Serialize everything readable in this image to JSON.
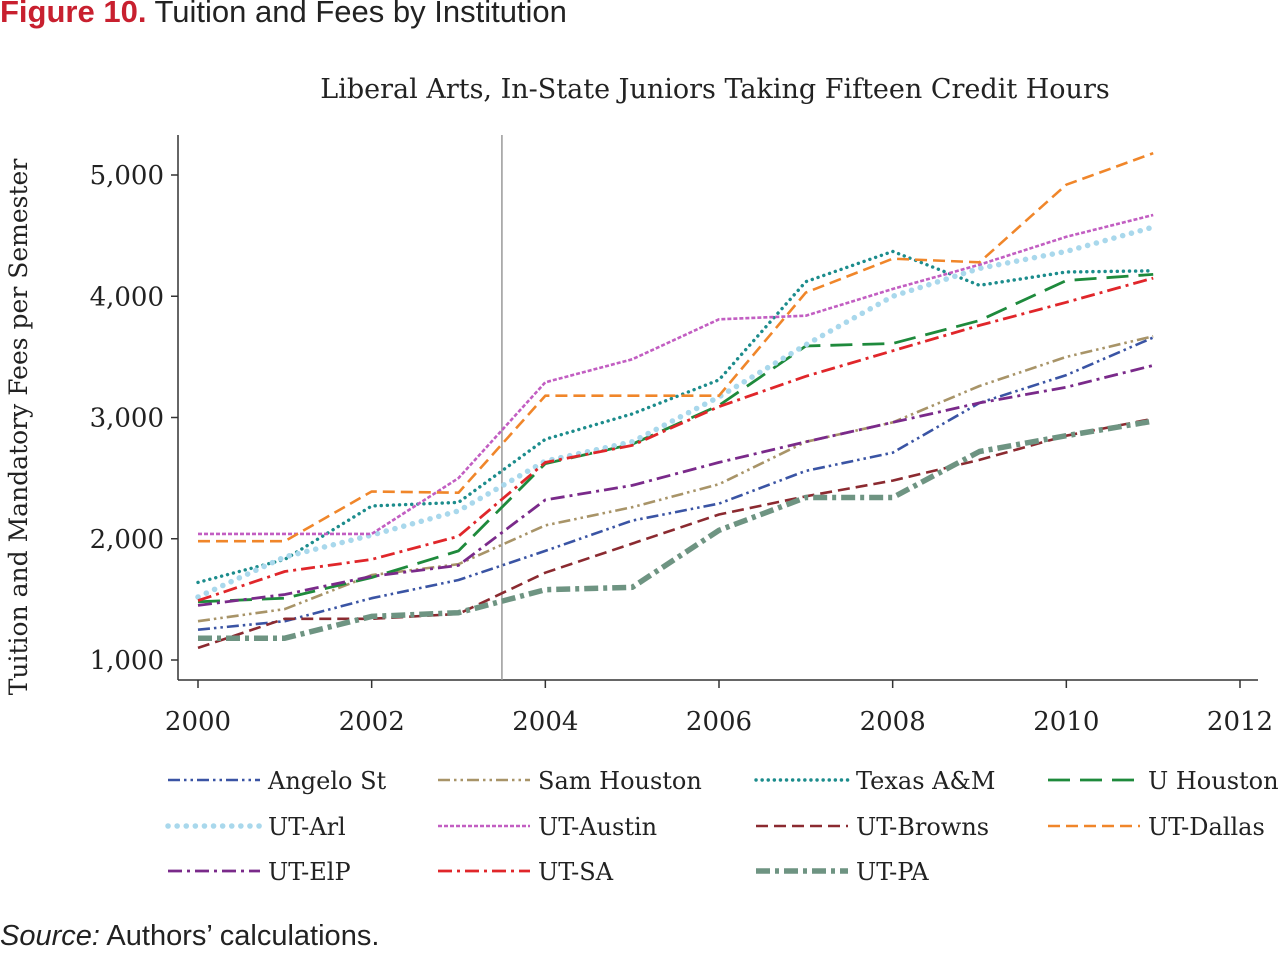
{
  "figure": {
    "number_label": "Figure 10.",
    "title": "Tuition and Fees by Institution"
  },
  "source": {
    "label": "Source:",
    "text": "Authors’ calculations."
  },
  "chart_data": {
    "type": "line",
    "title": "Liberal Arts, In-State Juniors Taking Fifteen Credit Hours",
    "xlabel": "",
    "ylabel": "Tuition and Mandatory Fees per Semester",
    "xlim": [
      2000,
      2012
    ],
    "ylim": [
      1000,
      5250
    ],
    "x_ticks": [
      2000,
      2002,
      2004,
      2006,
      2008,
      2010,
      2012
    ],
    "x_tick_labels": [
      "2000",
      "2002",
      "2004",
      "2006",
      "2008",
      "2010",
      "2012"
    ],
    "y_ticks": [
      1000,
      2000,
      3000,
      4000,
      5000
    ],
    "y_tick_labels": [
      "1,000",
      "2,000",
      "3,000",
      "4,000",
      "5,000"
    ],
    "reference_line_x": 2003.5,
    "grid": false,
    "legend_position": "bottom",
    "x": [
      2000,
      2001,
      2002,
      2003,
      2004,
      2005,
      2006,
      2007,
      2008,
      2009,
      2010,
      2011
    ],
    "series": [
      {
        "name": "Angelo St",
        "color": "#3a54a4",
        "dash": "dashdotdot",
        "values": [
          1250,
          1320,
          1510,
          1660,
          1900,
          2150,
          2290,
          2560,
          2710,
          3120,
          3350,
          3660
        ]
      },
      {
        "name": "Sam Houston",
        "color": "#a89468",
        "dash": "dashdotdot",
        "values": [
          1320,
          1420,
          1700,
          1790,
          2110,
          2260,
          2450,
          2800,
          2960,
          3260,
          3500,
          3670
        ]
      },
      {
        "name": "Texas A&M",
        "color": "#1c8c8c",
        "dash": "dot",
        "values": [
          1640,
          1830,
          2270,
          2300,
          2820,
          3030,
          3310,
          4120,
          4370,
          4090,
          4200,
          4210
        ]
      },
      {
        "name": "U Houston",
        "color": "#1e8a3c",
        "dash": "longdash",
        "values": [
          1480,
          1510,
          1680,
          1900,
          2620,
          2780,
          3100,
          3590,
          3610,
          3800,
          4130,
          4180
        ]
      },
      {
        "name": "UT-Arl",
        "color": "#a9d8ec",
        "dash": "dotthick",
        "values": [
          1520,
          1850,
          2030,
          2230,
          2640,
          2800,
          3170,
          3600,
          4000,
          4230,
          4370,
          4570
        ]
      },
      {
        "name": "UT-Austin",
        "color": "#c25ec2",
        "dash": "shortdash",
        "values": [
          2040,
          2040,
          2040,
          2500,
          3290,
          3480,
          3810,
          3840,
          4060,
          4260,
          4490,
          4670
        ]
      },
      {
        "name": "UT-Browns",
        "color": "#8b2a30",
        "dash": "dash",
        "values": [
          1100,
          1340,
          1340,
          1380,
          1720,
          1960,
          2200,
          2350,
          2480,
          2650,
          2850,
          2990
        ]
      },
      {
        "name": "UT-Dallas",
        "color": "#f0862a",
        "dash": "dash",
        "values": [
          1980,
          1980,
          2390,
          2380,
          3180,
          3180,
          3180,
          4030,
          4310,
          4280,
          4920,
          5180
        ]
      },
      {
        "name": "UT-ElP",
        "color": "#7a2a8a",
        "dash": "dashdot",
        "values": [
          1450,
          1540,
          1690,
          1780,
          2320,
          2440,
          2630,
          2800,
          2960,
          3120,
          3250,
          3430
        ]
      },
      {
        "name": "UT-SA",
        "color": "#e0262a",
        "dash": "dashdot",
        "values": [
          1490,
          1730,
          1830,
          2020,
          2630,
          2770,
          3090,
          3340,
          3550,
          3760,
          3950,
          4150
        ]
      },
      {
        "name": "UT-PA",
        "color": "#6e9482",
        "dash": "dashdotthick",
        "values": [
          1180,
          1180,
          1360,
          1390,
          1580,
          1600,
          2070,
          2340,
          2340,
          2720,
          2850,
          2970
        ]
      }
    ]
  }
}
